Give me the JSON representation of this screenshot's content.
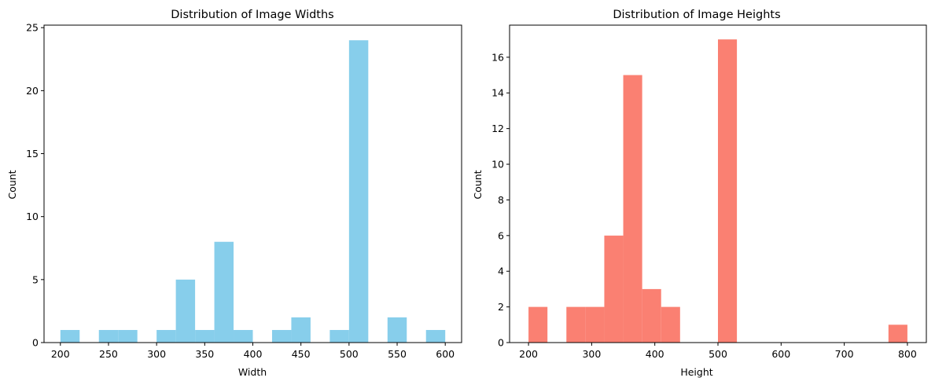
{
  "charts": [
    {
      "type": "bar",
      "title": "Distribution of Image Widths",
      "xlabel": "Width",
      "ylabel": "Count",
      "color": "#87CEEB",
      "xlim": [
        183,
        617
      ],
      "ylim": [
        0,
        25.2
      ],
      "xticks": [
        200,
        250,
        300,
        350,
        400,
        450,
        500,
        550,
        600
      ],
      "yticks": [
        0,
        5,
        10,
        15,
        20,
        25
      ],
      "bins": [
        {
          "x0": 200,
          "x1": 220,
          "count": 1
        },
        {
          "x0": 240,
          "x1": 260,
          "count": 1
        },
        {
          "x0": 260,
          "x1": 280,
          "count": 1
        },
        {
          "x0": 300,
          "x1": 320,
          "count": 1
        },
        {
          "x0": 320,
          "x1": 340,
          "count": 5
        },
        {
          "x0": 340,
          "x1": 360,
          "count": 1
        },
        {
          "x0": 360,
          "x1": 380,
          "count": 8
        },
        {
          "x0": 380,
          "x1": 400,
          "count": 1
        },
        {
          "x0": 420,
          "x1": 440,
          "count": 1
        },
        {
          "x0": 440,
          "x1": 460,
          "count": 2
        },
        {
          "x0": 480,
          "x1": 500,
          "count": 1
        },
        {
          "x0": 500,
          "x1": 520,
          "count": 24
        },
        {
          "x0": 540,
          "x1": 560,
          "count": 2
        },
        {
          "x0": 580,
          "x1": 600,
          "count": 1
        }
      ]
    },
    {
      "type": "bar",
      "title": "Distribution of Image Heights",
      "xlabel": "Height",
      "ylabel": "Count",
      "color": "#FA8072",
      "xlim": [
        170,
        830
      ],
      "ylim": [
        0,
        17.8
      ],
      "xticks": [
        200,
        300,
        400,
        500,
        600,
        700,
        800
      ],
      "yticks": [
        0,
        2,
        4,
        6,
        8,
        10,
        12,
        14,
        16
      ],
      "bins": [
        {
          "x0": 200,
          "x1": 230,
          "count": 2
        },
        {
          "x0": 260,
          "x1": 290,
          "count": 2
        },
        {
          "x0": 290,
          "x1": 320,
          "count": 2
        },
        {
          "x0": 320,
          "x1": 350,
          "count": 6
        },
        {
          "x0": 350,
          "x1": 380,
          "count": 15
        },
        {
          "x0": 380,
          "x1": 410,
          "count": 3
        },
        {
          "x0": 410,
          "x1": 440,
          "count": 2
        },
        {
          "x0": 500,
          "x1": 530,
          "count": 17
        },
        {
          "x0": 770,
          "x1": 800,
          "count": 1
        }
      ]
    }
  ]
}
